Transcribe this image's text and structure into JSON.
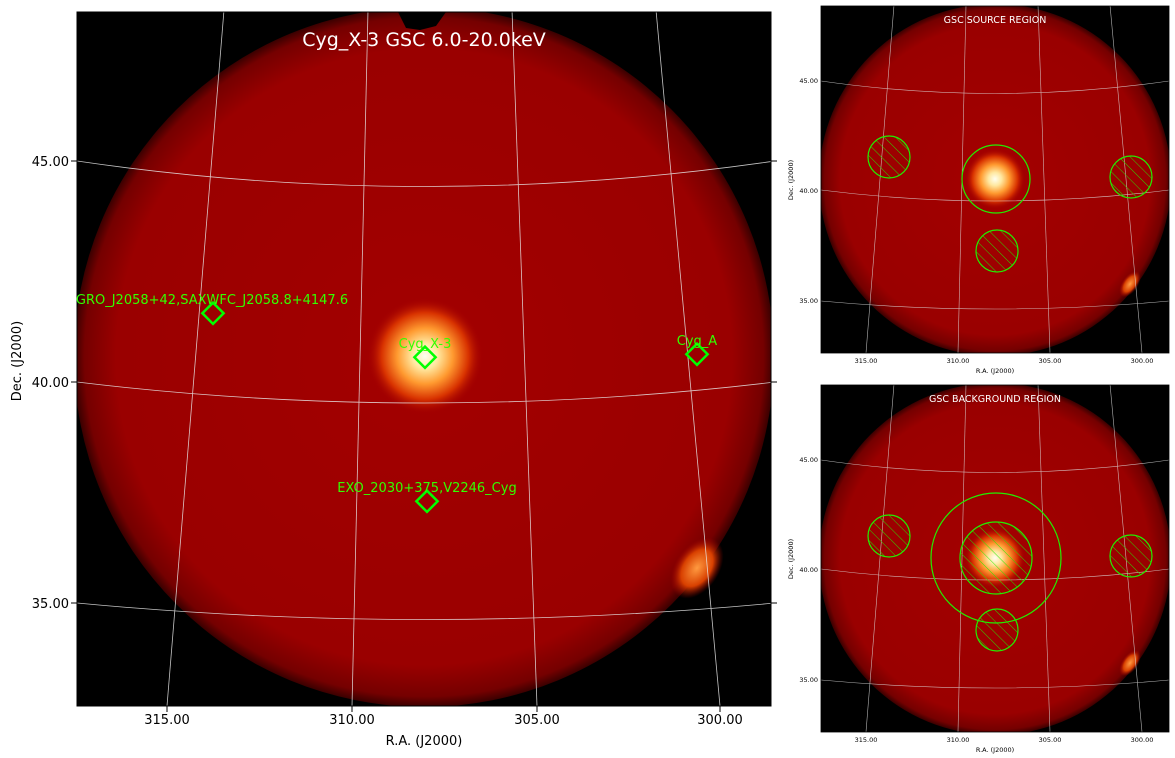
{
  "main_panel": {
    "title": "Cyg_X-3 GSC 6.0-20.0keV",
    "xlabel": "R.A. (J2000)",
    "ylabel": "Dec. (J2000)",
    "xticks": [
      "315.00",
      "310.00",
      "305.00",
      "300.00"
    ],
    "yticks": [
      "45.00",
      "40.00",
      "35.00"
    ],
    "sources": [
      {
        "label": "GRO_J2058+42,SAXWFC_J2058.8+4147.6"
      },
      {
        "label": "Cyg_X-3"
      },
      {
        "label": "Cyg_A"
      },
      {
        "label": "EXO_2030+375,V2246_Cyg"
      }
    ]
  },
  "source_panel": {
    "title": "GSC SOURCE REGION",
    "xlabel": "R.A. (J2000)",
    "ylabel": "Dec. (J2000)",
    "xticks": [
      "315.00",
      "310.00",
      "305.00",
      "300.00"
    ],
    "yticks": [
      "45.00",
      "40.00",
      "35.00"
    ]
  },
  "background_panel": {
    "title": "GSC BACKGROUND REGION",
    "xlabel": "R.A. (J2000)",
    "ylabel": "Dec. (J2000)",
    "xticks": [
      "315.00",
      "310.00",
      "305.00",
      "300.00"
    ],
    "yticks": [
      "45.00",
      "40.00",
      "35.00"
    ]
  },
  "colors": {
    "region": "#22ee00",
    "marker": "#00ff00",
    "grid": "#e8e8e8",
    "sky": "#9a0000",
    "background": "#000000"
  }
}
